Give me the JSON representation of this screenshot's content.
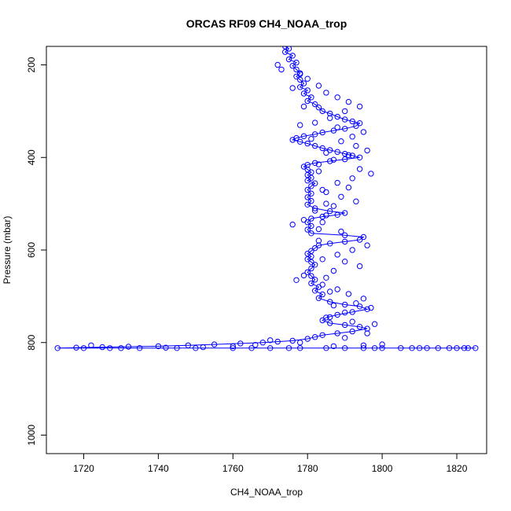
{
  "chart_data": {
    "type": "scatter",
    "title": "ORCAS RF09 CH4_NOAA_trop",
    "xlabel": "CH4_NOAA_trop",
    "ylabel": "Pressure (mbar)",
    "xlim": [
      1710,
      1828
    ],
    "ylim": [
      1040,
      160
    ],
    "y_reversed": true,
    "grid": false,
    "xticks": [
      1720,
      1740,
      1760,
      1780,
      1800,
      1820
    ],
    "yticks": [
      200,
      400,
      600,
      800,
      1000
    ],
    "series": [
      {
        "name": "",
        "color": "#0000ff",
        "marker": "open-circle",
        "connected": true,
        "points": [
          [
            1774,
            160
          ],
          [
            1775,
            165
          ],
          [
            1774,
            172
          ],
          [
            1776,
            180
          ],
          [
            1775,
            188
          ],
          [
            1777,
            195
          ],
          [
            1776,
            202
          ],
          [
            1777,
            210
          ],
          [
            1778,
            218
          ],
          [
            1777,
            225
          ],
          [
            1778,
            232
          ],
          [
            1779,
            240
          ],
          [
            1778,
            248
          ],
          [
            1780,
            255
          ],
          [
            1779,
            262
          ],
          [
            1781,
            270
          ],
          [
            1780,
            278
          ],
          [
            1782,
            285
          ],
          [
            1783,
            292
          ],
          [
            1784,
            300
          ],
          [
            1786,
            305
          ],
          [
            1788,
            312
          ],
          [
            1790,
            318
          ],
          [
            1792,
            322
          ],
          [
            1794,
            326
          ],
          [
            1793,
            332
          ],
          [
            1790,
            338
          ],
          [
            1787,
            342
          ],
          [
            1784,
            346
          ],
          [
            1782,
            350
          ],
          [
            1779,
            354
          ],
          [
            1777,
            358
          ],
          [
            1776,
            362
          ],
          [
            1778,
            366
          ],
          [
            1780,
            370
          ],
          [
            1782,
            375
          ],
          [
            1784,
            380
          ],
          [
            1786,
            384
          ],
          [
            1788,
            388
          ],
          [
            1790,
            392
          ],
          [
            1792,
            396
          ],
          [
            1794,
            400
          ],
          [
            1790,
            404
          ],
          [
            1786,
            408
          ],
          [
            1782,
            412
          ],
          [
            1780,
            416
          ],
          [
            1779,
            420
          ],
          [
            1780,
            426
          ],
          [
            1781,
            432
          ],
          [
            1780,
            438
          ],
          [
            1781,
            444
          ],
          [
            1780,
            450
          ],
          [
            1782,
            456
          ],
          [
            1781,
            462
          ],
          [
            1780,
            470
          ],
          [
            1781,
            478
          ],
          [
            1780,
            486
          ],
          [
            1781,
            494
          ],
          [
            1780,
            502
          ],
          [
            1782,
            510
          ],
          [
            1786,
            516
          ],
          [
            1790,
            520
          ],
          [
            1788,
            524
          ],
          [
            1784,
            528
          ],
          [
            1781,
            532
          ],
          [
            1780,
            540
          ],
          [
            1781,
            548
          ],
          [
            1780,
            556
          ],
          [
            1781,
            564
          ],
          [
            1790,
            568
          ],
          [
            1795,
            572
          ],
          [
            1794,
            578
          ],
          [
            1790,
            582
          ],
          [
            1786,
            586
          ],
          [
            1783,
            590
          ],
          [
            1782,
            596
          ],
          [
            1781,
            602
          ],
          [
            1780,
            608
          ],
          [
            1781,
            614
          ],
          [
            1780,
            620
          ],
          [
            1781,
            626
          ],
          [
            1782,
            632
          ],
          [
            1781,
            640
          ],
          [
            1780,
            648
          ],
          [
            1781,
            656
          ],
          [
            1782,
            664
          ],
          [
            1781,
            672
          ],
          [
            1783,
            680
          ],
          [
            1782,
            688
          ],
          [
            1784,
            696
          ],
          [
            1783,
            704
          ],
          [
            1786,
            712
          ],
          [
            1790,
            718
          ],
          [
            1794,
            722
          ],
          [
            1796,
            728
          ],
          [
            1792,
            734
          ],
          [
            1788,
            740
          ],
          [
            1785,
            746
          ],
          [
            1784,
            752
          ],
          [
            1786,
            758
          ],
          [
            1790,
            762
          ],
          [
            1794,
            766
          ],
          [
            1796,
            770
          ],
          [
            1792,
            776
          ],
          [
            1788,
            780
          ],
          [
            1784,
            784
          ],
          [
            1782,
            788
          ],
          [
            1780,
            792
          ],
          [
            1776,
            796
          ],
          [
            1772,
            798
          ],
          [
            1768,
            800
          ],
          [
            1762,
            802
          ],
          [
            1755,
            804
          ],
          [
            1748,
            806
          ],
          [
            1740,
            808
          ],
          [
            1732,
            809
          ],
          [
            1725,
            810
          ],
          [
            1718,
            811
          ],
          [
            1713,
            812
          ],
          [
            1720,
            812
          ],
          [
            1730,
            812
          ],
          [
            1745,
            812
          ],
          [
            1760,
            812
          ],
          [
            1775,
            812
          ],
          [
            1790,
            812
          ],
          [
            1805,
            812
          ],
          [
            1815,
            812
          ],
          [
            1822,
            812
          ],
          [
            1825,
            812
          ],
          [
            1818,
            812
          ],
          [
            1808,
            812
          ],
          [
            1795,
            812
          ],
          [
            1785,
            812
          ],
          [
            1778,
            812
          ]
        ],
        "scatter_only": [
          [
            1772,
            200
          ],
          [
            1778,
            220
          ],
          [
            1780,
            230
          ],
          [
            1783,
            245
          ],
          [
            1785,
            260
          ],
          [
            1788,
            270
          ],
          [
            1791,
            280
          ],
          [
            1794,
            290
          ],
          [
            1790,
            300
          ],
          [
            1786,
            315
          ],
          [
            1782,
            325
          ],
          [
            1788,
            335
          ],
          [
            1795,
            345
          ],
          [
            1792,
            355
          ],
          [
            1789,
            365
          ],
          [
            1793,
            375
          ],
          [
            1796,
            385
          ],
          [
            1791,
            395
          ],
          [
            1787,
            405
          ],
          [
            1783,
            415
          ],
          [
            1794,
            425
          ],
          [
            1797,
            435
          ],
          [
            1792,
            445
          ],
          [
            1788,
            455
          ],
          [
            1791,
            465
          ],
          [
            1785,
            475
          ],
          [
            1789,
            485
          ],
          [
            1793,
            495
          ],
          [
            1787,
            505
          ],
          [
            1782,
            515
          ],
          [
            1785,
            525
          ],
          [
            1779,
            535
          ],
          [
            1776,
            545
          ],
          [
            1783,
            555
          ],
          [
            1789,
            560
          ],
          [
            1796,
            590
          ],
          [
            1792,
            600
          ],
          [
            1788,
            610
          ],
          [
            1790,
            625
          ],
          [
            1794,
            635
          ],
          [
            1787,
            645
          ],
          [
            1779,
            655
          ],
          [
            1777,
            665
          ],
          [
            1784,
            675
          ],
          [
            1788,
            685
          ],
          [
            1791,
            695
          ],
          [
            1795,
            705
          ],
          [
            1793,
            715
          ],
          [
            1797,
            725
          ],
          [
            1790,
            735
          ],
          [
            1786,
            745
          ],
          [
            1792,
            755
          ],
          [
            1798,
            760
          ],
          [
            1796,
            780
          ],
          [
            1790,
            790
          ],
          [
            1778,
            800
          ],
          [
            1770,
            795
          ],
          [
            1766,
            805
          ],
          [
            1760,
            808
          ],
          [
            1752,
            810
          ],
          [
            1742,
            811
          ],
          [
            1735,
            812
          ],
          [
            1727,
            812
          ],
          [
            1722,
            806
          ],
          [
            1750,
            812
          ],
          [
            1765,
            812
          ],
          [
            1770,
            812
          ],
          [
            1800,
            812
          ],
          [
            1812,
            812
          ],
          [
            1820,
            812
          ],
          [
            1823,
            812
          ],
          [
            1810,
            812
          ],
          [
            1798,
            812
          ],
          [
            1787,
            808
          ],
          [
            1795,
            806
          ],
          [
            1800,
            804
          ],
          [
            1773,
            210
          ],
          [
            1776,
            250
          ],
          [
            1779,
            290
          ],
          [
            1778,
            330
          ],
          [
            1781,
            360
          ],
          [
            1785,
            390
          ],
          [
            1783,
            430
          ],
          [
            1784,
            470
          ],
          [
            1785,
            500
          ],
          [
            1784,
            540
          ],
          [
            1783,
            580
          ],
          [
            1784,
            620
          ],
          [
            1785,
            660
          ],
          [
            1786,
            690
          ],
          [
            1787,
            720
          ]
        ]
      }
    ]
  }
}
